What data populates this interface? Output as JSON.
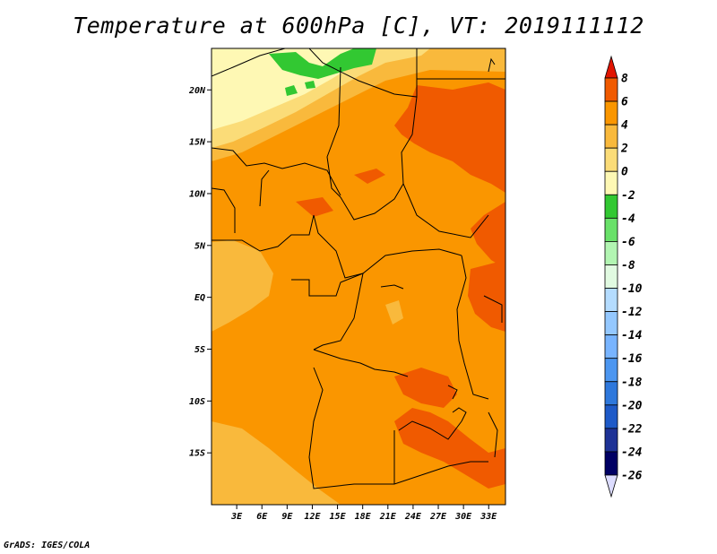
{
  "title": "Temperature at 600hPa [C], VT: 2019111112",
  "credit": "GrADS: IGES/COLA",
  "map": {
    "lon_range": [
      0,
      35
    ],
    "lat_range": [
      -20,
      24
    ],
    "lat_ticks": [
      {
        "value": 20,
        "label": "20N"
      },
      {
        "value": 15,
        "label": "15N"
      },
      {
        "value": 10,
        "label": "10N"
      },
      {
        "value": 5,
        "label": "5N"
      },
      {
        "value": 0,
        "label": "EQ"
      },
      {
        "value": -5,
        "label": "5S"
      },
      {
        "value": -10,
        "label": "10S"
      },
      {
        "value": -15,
        "label": "15S"
      }
    ],
    "lon_ticks": [
      {
        "value": 3,
        "label": "3E"
      },
      {
        "value": 6,
        "label": "6E"
      },
      {
        "value": 9,
        "label": "9E"
      },
      {
        "value": 12,
        "label": "12E"
      },
      {
        "value": 15,
        "label": "15E"
      },
      {
        "value": 18,
        "label": "18E"
      },
      {
        "value": 21,
        "label": "21E"
      },
      {
        "value": 24,
        "label": "24E"
      },
      {
        "value": 27,
        "label": "27E"
      },
      {
        "value": 30,
        "label": "30E"
      },
      {
        "value": 33,
        "label": "33E"
      }
    ]
  },
  "colorbar": {
    "labels": [
      "8",
      "6",
      "4",
      "2",
      "0",
      "-2",
      "-4",
      "-6",
      "-8",
      "-10",
      "-12",
      "-14",
      "-16",
      "-18",
      "-20",
      "-22",
      "-24",
      "-26"
    ],
    "colors": [
      "#e11400",
      "#f05a00",
      "#fa9600",
      "#f9b93c",
      "#fbdc78",
      "#fef8b4",
      "#32c832",
      "#69e169",
      "#b2f5b2",
      "#e1fae1",
      "#b4dcff",
      "#94c8ff",
      "#78b4ff",
      "#4c96f0",
      "#2e78dc",
      "#1e5ac8",
      "#1e3296",
      "#000064"
    ],
    "top_color": "#e11400",
    "bottom_color": "#dcdcff"
  }
}
